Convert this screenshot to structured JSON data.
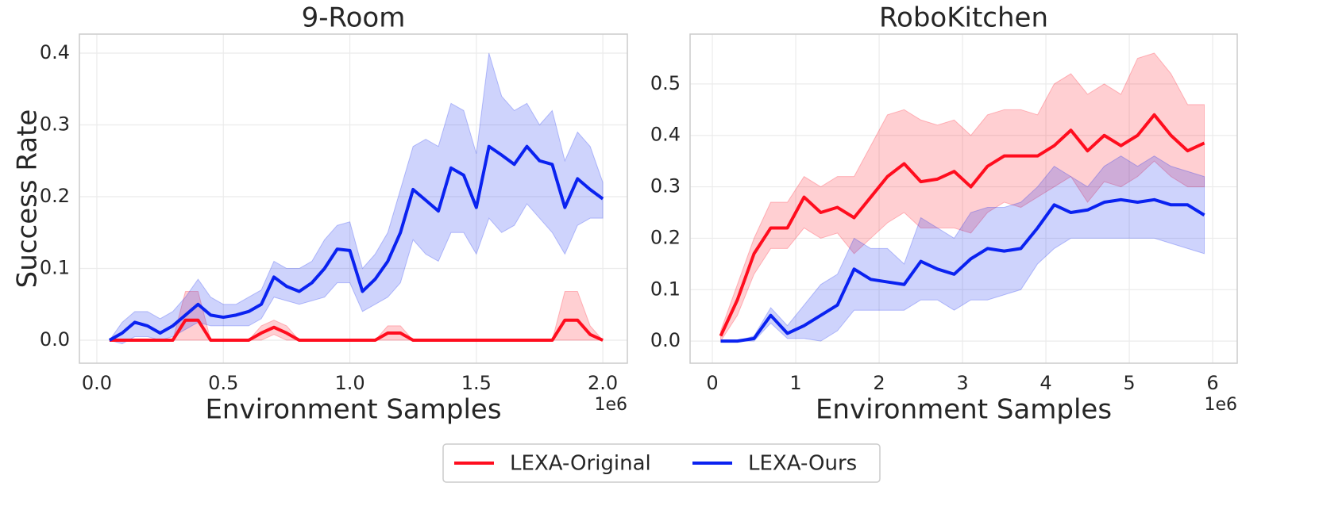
{
  "chart_data": [
    {
      "type": "line",
      "title": "9-Room",
      "xlabel": "Environment Samples",
      "ylabel": "Success Rate",
      "x_offset_label": "1e6",
      "xlim": [
        -0.069,
        2.097
      ],
      "ylim": [
        -0.032,
        0.4265
      ],
      "xticks": [
        {
          "value": 0,
          "label": "0.0"
        },
        0.5,
        {
          "value": 1,
          "label": "1.0"
        },
        1.5,
        {
          "value": 2,
          "label": "2.0"
        }
      ],
      "yticks": [
        {
          "value": 0,
          "label": "0.0"
        },
        0.1,
        0.2,
        0.3,
        0.4
      ],
      "grid": true,
      "x": [
        0.05,
        0.1,
        0.15,
        0.2,
        0.25,
        0.3,
        0.35,
        0.4,
        0.45,
        0.5,
        0.55,
        0.6,
        0.65,
        0.7,
        0.75,
        0.8,
        0.85,
        0.9,
        0.95,
        1.0,
        1.05,
        1.1,
        1.15,
        1.2,
        1.25,
        1.3,
        1.35,
        1.4,
        1.45,
        1.5,
        1.55,
        1.6,
        1.65,
        1.7,
        1.75,
        1.8,
        1.85,
        1.9,
        1.95,
        2.0
      ],
      "series": [
        {
          "name": "LEXA-Original",
          "color": "#ff0d1e",
          "values": [
            0,
            0,
            0,
            0,
            0,
            0,
            0.028,
            0.028,
            0,
            0,
            0,
            0,
            0.01,
            0.018,
            0.01,
            0,
            0,
            0,
            0,
            0,
            0,
            0,
            0.01,
            0.01,
            0,
            0,
            0,
            0,
            0,
            0,
            0,
            0,
            0,
            0,
            0,
            0,
            0.028,
            0.028,
            0.008,
            0
          ],
          "lower": [
            0,
            0,
            0,
            0,
            0,
            0,
            0.0,
            0.0,
            0,
            0,
            0,
            0,
            0.0,
            0.008,
            0.0,
            0,
            0,
            0,
            0,
            0,
            0,
            0,
            0.0,
            0.0,
            0,
            0,
            0,
            0,
            0,
            0,
            0,
            0,
            0,
            0,
            0,
            0,
            0.0,
            0.0,
            0.0,
            0
          ],
          "upper": [
            0,
            0,
            0,
            0,
            0,
            0,
            0.068,
            0.068,
            0,
            0,
            0,
            0,
            0.02,
            0.028,
            0.02,
            0,
            0,
            0,
            0,
            0,
            0,
            0,
            0.02,
            0.02,
            0,
            0,
            0,
            0,
            0,
            0,
            0,
            0,
            0,
            0,
            0,
            0,
            0.068,
            0.068,
            0.02,
            0
          ]
        },
        {
          "name": "LEXA-Ours",
          "color": "#0a22f0",
          "values": [
            0,
            0.01,
            0.025,
            0.02,
            0.01,
            0.02,
            0.035,
            0.05,
            0.035,
            0.032,
            0.035,
            0.04,
            0.05,
            0.088,
            0.075,
            0.068,
            0.08,
            0.1,
            0.127,
            0.125,
            0.068,
            0.085,
            0.11,
            0.15,
            0.21,
            0.195,
            0.18,
            0.24,
            0.23,
            0.185,
            0.27,
            0.258,
            0.245,
            0.27,
            0.25,
            0.245,
            0.185,
            0.225,
            0.21,
            0.197
          ],
          "lower": [
            0,
            -0.005,
            0.005,
            0.005,
            0.0,
            0.005,
            0.015,
            0.025,
            0.02,
            0.02,
            0.02,
            0.02,
            0.03,
            0.06,
            0.055,
            0.05,
            0.055,
            0.06,
            0.08,
            0.08,
            0.04,
            0.05,
            0.06,
            0.08,
            0.14,
            0.12,
            0.11,
            0.15,
            0.15,
            0.12,
            0.17,
            0.15,
            0.16,
            0.19,
            0.17,
            0.15,
            0.12,
            0.16,
            0.17,
            0.17
          ],
          "upper": [
            0,
            0.025,
            0.04,
            0.04,
            0.03,
            0.04,
            0.06,
            0.085,
            0.06,
            0.05,
            0.05,
            0.06,
            0.07,
            0.11,
            0.1,
            0.1,
            0.11,
            0.14,
            0.16,
            0.165,
            0.1,
            0.12,
            0.15,
            0.21,
            0.27,
            0.28,
            0.27,
            0.33,
            0.32,
            0.26,
            0.4,
            0.34,
            0.32,
            0.33,
            0.3,
            0.32,
            0.25,
            0.29,
            0.27,
            0.22
          ]
        }
      ]
    },
    {
      "type": "line",
      "title": "RoboKitchen",
      "xlabel": "Environment Samples",
      "x_offset_label": "1e6",
      "xlim": [
        -0.267,
        6.295
      ],
      "ylim": [
        -0.043,
        0.597
      ],
      "xticks": [
        0,
        1,
        2,
        3,
        4,
        5,
        6
      ],
      "yticks": [
        {
          "value": 0,
          "label": "0.0"
        },
        0.1,
        0.2,
        0.3,
        0.4,
        0.5
      ],
      "grid": true,
      "x": [
        0.1,
        0.3,
        0.5,
        0.7,
        0.9,
        1.1,
        1.3,
        1.5,
        1.7,
        1.9,
        2.1,
        2.3,
        2.5,
        2.7,
        2.9,
        3.1,
        3.3,
        3.5,
        3.7,
        3.9,
        4.1,
        4.3,
        4.5,
        4.7,
        4.9,
        5.1,
        5.3,
        5.5,
        5.7,
        5.9
      ],
      "series": [
        {
          "name": "LEXA-Original",
          "color": "#ff0d1e",
          "values": [
            0.01,
            0.08,
            0.17,
            0.22,
            0.22,
            0.28,
            0.25,
            0.26,
            0.24,
            0.28,
            0.32,
            0.345,
            0.31,
            0.315,
            0.33,
            0.3,
            0.34,
            0.36,
            0.36,
            0.36,
            0.38,
            0.41,
            0.37,
            0.4,
            0.38,
            0.4,
            0.44,
            0.4,
            0.37,
            0.385
          ],
          "lower": [
            0.0,
            0.05,
            0.13,
            0.18,
            0.18,
            0.22,
            0.2,
            0.21,
            0.17,
            0.2,
            0.23,
            0.25,
            0.22,
            0.22,
            0.22,
            0.21,
            0.25,
            0.27,
            0.26,
            0.28,
            0.3,
            0.32,
            0.27,
            0.31,
            0.3,
            0.32,
            0.35,
            0.32,
            0.3,
            0.3
          ],
          "upper": [
            0.02,
            0.11,
            0.2,
            0.27,
            0.27,
            0.32,
            0.3,
            0.32,
            0.32,
            0.38,
            0.44,
            0.45,
            0.43,
            0.42,
            0.43,
            0.4,
            0.44,
            0.45,
            0.45,
            0.44,
            0.5,
            0.52,
            0.48,
            0.5,
            0.48,
            0.55,
            0.56,
            0.52,
            0.46,
            0.46
          ]
        },
        {
          "name": "LEXA-Ours",
          "color": "#0a22f0",
          "values": [
            0,
            0,
            0.005,
            0.05,
            0.015,
            0.03,
            0.05,
            0.07,
            0.14,
            0.12,
            0.115,
            0.11,
            0.155,
            0.14,
            0.13,
            0.16,
            0.18,
            0.175,
            0.18,
            0.22,
            0.265,
            0.25,
            0.255,
            0.27,
            0.275,
            0.27,
            0.275,
            0.265,
            0.265,
            0.245
          ],
          "lower": [
            0,
            0,
            0,
            0.035,
            0.005,
            0.005,
            0.0,
            0.02,
            0.06,
            0.06,
            0.06,
            0.06,
            0.08,
            0.08,
            0.06,
            0.08,
            0.08,
            0.09,
            0.1,
            0.15,
            0.18,
            0.2,
            0.2,
            0.2,
            0.2,
            0.2,
            0.2,
            0.19,
            0.18,
            0.17
          ],
          "upper": [
            0,
            0,
            0.01,
            0.065,
            0.03,
            0.07,
            0.11,
            0.13,
            0.2,
            0.18,
            0.18,
            0.15,
            0.24,
            0.22,
            0.2,
            0.25,
            0.26,
            0.26,
            0.27,
            0.3,
            0.34,
            0.32,
            0.3,
            0.34,
            0.36,
            0.34,
            0.36,
            0.34,
            0.33,
            0.32
          ]
        }
      ]
    }
  ],
  "legend": "lower center"
}
